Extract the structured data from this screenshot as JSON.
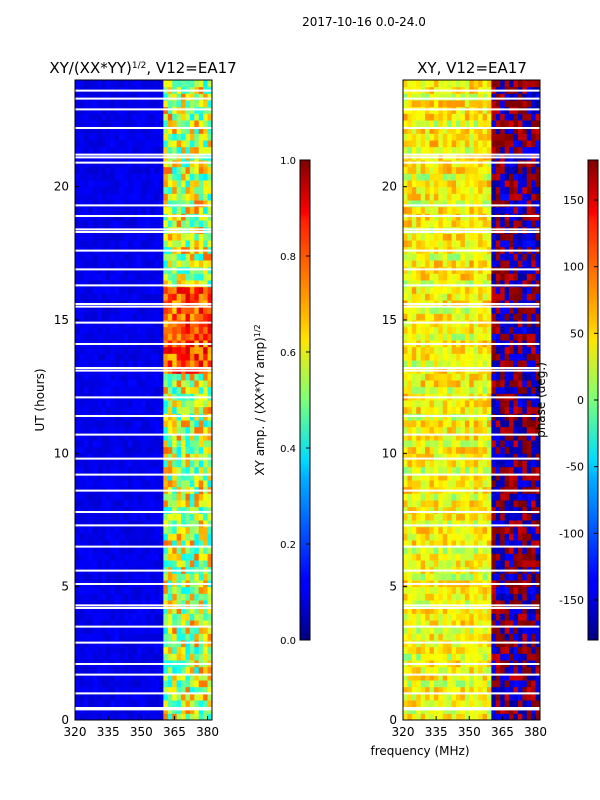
{
  "figure": {
    "suptitle": "2017-10-16 0.0-24.0",
    "shared_xlabel": "frequency (MHz)"
  },
  "colors": {
    "background": "#ffffff",
    "gap_lines": "#ffffff",
    "axis": "#000000"
  },
  "chart_data": [
    {
      "type": "heatmap",
      "id": "amp",
      "title": "XY/(XX*YY)",
      "title_sup": "1/2",
      "title_suffix": ", V12=EA17",
      "xlabel": "",
      "ylabel": "UT (hours)",
      "xlim": [
        320,
        382
      ],
      "ylim": [
        0,
        24
      ],
      "xticks": [
        320,
        335,
        350,
        365,
        380
      ],
      "yticks": [
        0,
        5,
        10,
        15,
        20
      ],
      "colormap": "jet",
      "colorbar": {
        "label": "XY amp. / (XX*YY amp)",
        "label_sup": "1/2",
        "range": [
          0.0,
          1.0
        ],
        "ticks": [
          "0.0",
          "0.2",
          "0.4",
          "0.6",
          "0.8",
          "1.0"
        ]
      },
      "description_values": {
        "background_level": 0.08,
        "bright_band_mhz": [
          360,
          380
        ],
        "bright_band_level": 0.6,
        "peak_hours": [
          13.0,
          16.0
        ],
        "peak_level": 0.92
      },
      "gaps_ut_hours": [
        0.4,
        0.45,
        1.0,
        1.7,
        2.1,
        2.9,
        3.5,
        4.2,
        4.3,
        5.1,
        5.6,
        6.5,
        7.3,
        7.8,
        8.6,
        9.2,
        9.8,
        10.7,
        11.4,
        12.1,
        13.1,
        13.2,
        14.1,
        14.9,
        15.5,
        15.6,
        16.3,
        16.9,
        17.6,
        18.3,
        18.4,
        18.9,
        19.3,
        20.9,
        21.1,
        21.2,
        22.2,
        22.9,
        23.3,
        23.6
      ]
    },
    {
      "type": "heatmap",
      "id": "phase",
      "title": "XY, V12=EA17",
      "xlabel": "",
      "ylabel": "",
      "xlim": [
        320,
        382
      ],
      "ylim": [
        0,
        24
      ],
      "xticks": [
        320,
        335,
        350,
        365,
        380
      ],
      "yticks": [
        0,
        5,
        10,
        15,
        20
      ],
      "colormap": "jet",
      "colorbar": {
        "label": "phase (deg.)",
        "range": [
          -180,
          180
        ],
        "ticks": [
          "-150",
          "-100",
          "-50",
          "0",
          "50",
          "100",
          "150"
        ]
      },
      "description_values": {
        "low_band_phase_deg": 40,
        "high_band_mhz": [
          360,
          382
        ],
        "high_band_phase_deg": [
          -150,
          170
        ]
      },
      "gaps_ut_hours": [
        0.4,
        0.45,
        1.0,
        1.7,
        2.1,
        2.9,
        3.5,
        4.2,
        4.3,
        5.1,
        5.6,
        6.5,
        7.3,
        7.8,
        8.6,
        9.2,
        9.8,
        10.7,
        11.4,
        12.1,
        13.1,
        13.2,
        14.1,
        14.9,
        15.5,
        15.6,
        16.3,
        16.9,
        17.6,
        18.3,
        18.4,
        18.9,
        19.3,
        20.9,
        21.1,
        21.2,
        22.2,
        22.9,
        23.3,
        23.6
      ]
    }
  ]
}
